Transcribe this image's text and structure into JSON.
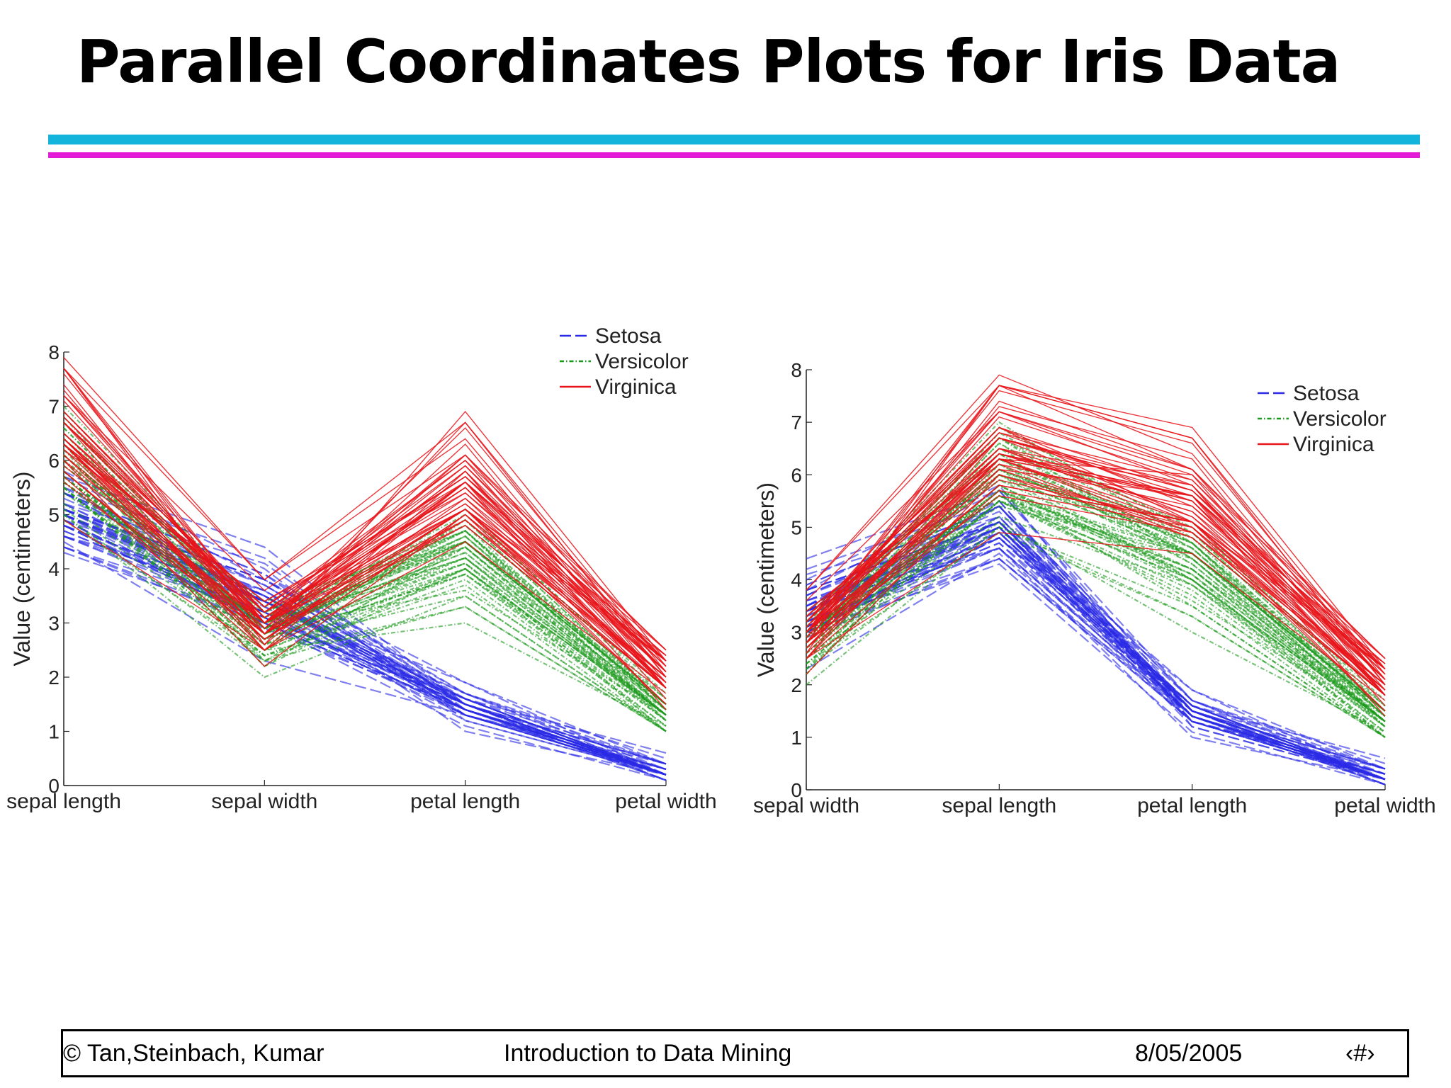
{
  "slide": {
    "title": "Parallel Coordinates Plots for Iris Data",
    "rule_colors": [
      "#12b4dc",
      "#e31ad6"
    ]
  },
  "footer": {
    "left": "© Tan,Steinbach, Kumar",
    "center": "Introduction to Data Mining",
    "date": "8/05/2005",
    "page": "‹#›"
  },
  "chart_data": [
    {
      "type": "line",
      "ylabel": "Value (centimeters)",
      "ylim": [
        0,
        8
      ],
      "yticks": [
        "0",
        "1",
        "2",
        "3",
        "4",
        "5",
        "6",
        "7",
        "8"
      ],
      "categories": [
        "sepal length",
        "sepal width",
        "petal length",
        "petal width"
      ],
      "legend": {
        "placement": "top-right",
        "entries": [
          "Setosa",
          "Versicolor",
          "Virginica"
        ]
      },
      "grid": false,
      "series": [
        {
          "name": "Setosa",
          "color": "#2a2ae6",
          "style": "dashed",
          "values": [
            [
              5.1,
              3.5,
              1.4,
              0.2
            ],
            [
              4.9,
              3.0,
              1.4,
              0.2
            ],
            [
              4.7,
              3.2,
              1.3,
              0.2
            ],
            [
              4.6,
              3.1,
              1.5,
              0.2
            ],
            [
              5.0,
              3.6,
              1.4,
              0.2
            ],
            [
              5.4,
              3.9,
              1.7,
              0.4
            ],
            [
              4.6,
              3.4,
              1.4,
              0.3
            ],
            [
              5.0,
              3.4,
              1.5,
              0.2
            ],
            [
              4.4,
              2.9,
              1.4,
              0.2
            ],
            [
              4.9,
              3.1,
              1.5,
              0.1
            ],
            [
              5.4,
              3.7,
              1.5,
              0.2
            ],
            [
              4.8,
              3.4,
              1.6,
              0.2
            ],
            [
              4.8,
              3.0,
              1.4,
              0.1
            ],
            [
              4.3,
              3.0,
              1.1,
              0.1
            ],
            [
              5.8,
              4.0,
              1.2,
              0.2
            ],
            [
              5.7,
              4.4,
              1.5,
              0.4
            ],
            [
              5.4,
              3.9,
              1.3,
              0.4
            ],
            [
              5.1,
              3.5,
              1.4,
              0.3
            ],
            [
              5.7,
              3.8,
              1.7,
              0.3
            ],
            [
              5.1,
              3.8,
              1.5,
              0.3
            ],
            [
              5.4,
              3.4,
              1.7,
              0.2
            ],
            [
              5.1,
              3.7,
              1.5,
              0.4
            ],
            [
              4.6,
              3.6,
              1.0,
              0.2
            ],
            [
              5.1,
              3.3,
              1.7,
              0.5
            ],
            [
              4.8,
              3.4,
              1.9,
              0.2
            ],
            [
              5.0,
              3.0,
              1.6,
              0.2
            ],
            [
              5.0,
              3.4,
              1.6,
              0.4
            ],
            [
              5.2,
              3.5,
              1.5,
              0.2
            ],
            [
              5.2,
              3.4,
              1.4,
              0.2
            ],
            [
              4.7,
              3.2,
              1.6,
              0.2
            ],
            [
              4.8,
              3.1,
              1.6,
              0.2
            ],
            [
              5.4,
              3.4,
              1.5,
              0.4
            ],
            [
              5.2,
              4.1,
              1.5,
              0.1
            ],
            [
              5.5,
              4.2,
              1.4,
              0.2
            ],
            [
              4.9,
              3.1,
              1.5,
              0.2
            ],
            [
              5.0,
              3.2,
              1.2,
              0.2
            ],
            [
              5.5,
              3.5,
              1.3,
              0.2
            ],
            [
              4.9,
              3.6,
              1.4,
              0.1
            ],
            [
              4.4,
              3.0,
              1.3,
              0.2
            ],
            [
              5.1,
              3.4,
              1.5,
              0.2
            ],
            [
              5.0,
              3.5,
              1.3,
              0.3
            ],
            [
              4.5,
              2.3,
              1.3,
              0.3
            ],
            [
              4.4,
              3.2,
              1.3,
              0.2
            ],
            [
              5.0,
              3.5,
              1.6,
              0.6
            ],
            [
              5.1,
              3.8,
              1.9,
              0.4
            ],
            [
              4.8,
              3.0,
              1.4,
              0.3
            ],
            [
              5.1,
              3.8,
              1.6,
              0.2
            ],
            [
              4.6,
              3.2,
              1.4,
              0.2
            ],
            [
              5.3,
              3.7,
              1.5,
              0.2
            ],
            [
              5.0,
              3.3,
              1.4,
              0.2
            ]
          ]
        },
        {
          "name": "Versicolor",
          "color": "#1a9a1a",
          "style": "dashdot",
          "values": [
            [
              7.0,
              3.2,
              4.7,
              1.4
            ],
            [
              6.4,
              3.2,
              4.5,
              1.5
            ],
            [
              6.9,
              3.1,
              4.9,
              1.5
            ],
            [
              5.5,
              2.3,
              4.0,
              1.3
            ],
            [
              6.5,
              2.8,
              4.6,
              1.5
            ],
            [
              5.7,
              2.8,
              4.5,
              1.3
            ],
            [
              6.3,
              3.3,
              4.7,
              1.6
            ],
            [
              4.9,
              2.4,
              3.3,
              1.0
            ],
            [
              6.6,
              2.9,
              4.6,
              1.3
            ],
            [
              5.2,
              2.7,
              3.9,
              1.4
            ],
            [
              5.0,
              2.0,
              3.5,
              1.0
            ],
            [
              5.9,
              3.0,
              4.2,
              1.5
            ],
            [
              6.0,
              2.2,
              4.0,
              1.0
            ],
            [
              6.1,
              2.9,
              4.7,
              1.4
            ],
            [
              5.6,
              2.9,
              3.6,
              1.3
            ],
            [
              6.7,
              3.1,
              4.4,
              1.4
            ],
            [
              5.6,
              3.0,
              4.5,
              1.5
            ],
            [
              5.8,
              2.7,
              4.1,
              1.0
            ],
            [
              6.2,
              2.2,
              4.5,
              1.5
            ],
            [
              5.6,
              2.5,
              3.9,
              1.1
            ],
            [
              5.9,
              3.2,
              4.8,
              1.8
            ],
            [
              6.1,
              2.8,
              4.0,
              1.3
            ],
            [
              6.3,
              2.5,
              4.9,
              1.5
            ],
            [
              6.1,
              2.8,
              4.7,
              1.2
            ],
            [
              6.4,
              2.9,
              4.3,
              1.3
            ],
            [
              6.6,
              3.0,
              4.4,
              1.4
            ],
            [
              6.8,
              2.8,
              4.8,
              1.4
            ],
            [
              6.7,
              3.0,
              5.0,
              1.7
            ],
            [
              6.0,
              2.9,
              4.5,
              1.5
            ],
            [
              5.7,
              2.6,
              3.5,
              1.0
            ],
            [
              5.5,
              2.4,
              3.8,
              1.1
            ],
            [
              5.5,
              2.4,
              3.7,
              1.0
            ],
            [
              5.8,
              2.7,
              3.9,
              1.2
            ],
            [
              6.0,
              2.7,
              5.1,
              1.6
            ],
            [
              5.4,
              3.0,
              4.5,
              1.5
            ],
            [
              6.0,
              3.4,
              4.5,
              1.6
            ],
            [
              6.7,
              3.1,
              4.7,
              1.5
            ],
            [
              6.3,
              2.3,
              4.4,
              1.3
            ],
            [
              5.6,
              3.0,
              4.1,
              1.3
            ],
            [
              5.5,
              2.5,
              4.0,
              1.3
            ],
            [
              5.5,
              2.6,
              4.4,
              1.2
            ],
            [
              6.1,
              3.0,
              4.6,
              1.4
            ],
            [
              5.8,
              2.6,
              4.0,
              1.2
            ],
            [
              5.0,
              2.3,
              3.3,
              1.0
            ],
            [
              5.6,
              2.7,
              4.2,
              1.3
            ],
            [
              5.7,
              3.0,
              4.2,
              1.2
            ],
            [
              5.7,
              2.9,
              4.2,
              1.3
            ],
            [
              6.2,
              2.9,
              4.3,
              1.3
            ],
            [
              5.1,
              2.5,
              3.0,
              1.1
            ],
            [
              5.7,
              2.8,
              4.1,
              1.3
            ]
          ]
        },
        {
          "name": "Virginica",
          "color": "#e8141a",
          "style": "solid",
          "values": [
            [
              6.3,
              3.3,
              6.0,
              2.5
            ],
            [
              5.8,
              2.7,
              5.1,
              1.9
            ],
            [
              7.1,
              3.0,
              5.9,
              2.1
            ],
            [
              6.3,
              2.9,
              5.6,
              1.8
            ],
            [
              6.5,
              3.0,
              5.8,
              2.2
            ],
            [
              7.6,
              3.0,
              6.6,
              2.1
            ],
            [
              4.9,
              2.5,
              4.5,
              1.7
            ],
            [
              7.3,
              2.9,
              6.3,
              1.8
            ],
            [
              6.7,
              2.5,
              5.8,
              1.8
            ],
            [
              7.2,
              3.6,
              6.1,
              2.5
            ],
            [
              6.5,
              3.2,
              5.1,
              2.0
            ],
            [
              6.4,
              2.7,
              5.3,
              1.9
            ],
            [
              6.8,
              3.0,
              5.5,
              2.1
            ],
            [
              5.7,
              2.5,
              5.0,
              2.0
            ],
            [
              5.8,
              2.8,
              5.1,
              2.4
            ],
            [
              6.4,
              3.2,
              5.3,
              2.3
            ],
            [
              6.5,
              3.0,
              5.5,
              1.8
            ],
            [
              7.7,
              3.8,
              6.7,
              2.2
            ],
            [
              7.7,
              2.6,
              6.9,
              2.3
            ],
            [
              6.0,
              2.2,
              5.0,
              1.5
            ],
            [
              6.9,
              3.2,
              5.7,
              2.3
            ],
            [
              5.6,
              2.8,
              4.9,
              2.0
            ],
            [
              7.7,
              2.8,
              6.7,
              2.0
            ],
            [
              6.3,
              2.7,
              4.9,
              1.8
            ],
            [
              6.7,
              3.3,
              5.7,
              2.1
            ],
            [
              7.2,
              3.2,
              6.0,
              1.8
            ],
            [
              6.2,
              2.8,
              4.8,
              1.8
            ],
            [
              6.1,
              3.0,
              4.9,
              1.8
            ],
            [
              6.4,
              2.8,
              5.6,
              2.1
            ],
            [
              7.2,
              3.0,
              5.8,
              1.6
            ],
            [
              7.4,
              2.8,
              6.1,
              1.9
            ],
            [
              7.9,
              3.8,
              6.4,
              2.0
            ],
            [
              6.4,
              2.8,
              5.6,
              2.2
            ],
            [
              6.3,
              2.8,
              5.1,
              1.5
            ],
            [
              6.1,
              2.6,
              5.6,
              1.4
            ],
            [
              7.7,
              3.0,
              6.1,
              2.3
            ],
            [
              6.3,
              3.4,
              5.6,
              2.4
            ],
            [
              6.4,
              3.1,
              5.5,
              1.8
            ],
            [
              6.0,
              3.0,
              4.8,
              1.8
            ],
            [
              6.9,
              3.1,
              5.4,
              2.1
            ],
            [
              6.7,
              3.1,
              5.6,
              2.4
            ],
            [
              6.9,
              3.1,
              5.1,
              2.3
            ],
            [
              5.8,
              2.7,
              5.1,
              1.9
            ],
            [
              6.8,
              3.2,
              5.9,
              2.3
            ],
            [
              6.7,
              3.3,
              5.7,
              2.5
            ],
            [
              6.7,
              3.0,
              5.2,
              2.3
            ],
            [
              6.3,
              2.5,
              5.0,
              1.9
            ],
            [
              6.5,
              3.0,
              5.2,
              2.0
            ],
            [
              6.2,
              3.4,
              5.4,
              2.3
            ],
            [
              5.9,
              3.0,
              5.1,
              1.8
            ]
          ]
        }
      ]
    },
    {
      "type": "line",
      "ylabel": "Value (centimeters)",
      "ylim": [
        0,
        8
      ],
      "yticks": [
        "0",
        "1",
        "2",
        "3",
        "4",
        "5",
        "6",
        "7",
        "8"
      ],
      "categories": [
        "sepal width",
        "sepal length",
        "petal length",
        "petal width"
      ],
      "legend": {
        "placement": "top-right",
        "entries": [
          "Setosa",
          "Versicolor",
          "Virginica"
        ]
      },
      "grid": false,
      "series_source": 0,
      "column_order": [
        1,
        0,
        2,
        3
      ]
    }
  ]
}
